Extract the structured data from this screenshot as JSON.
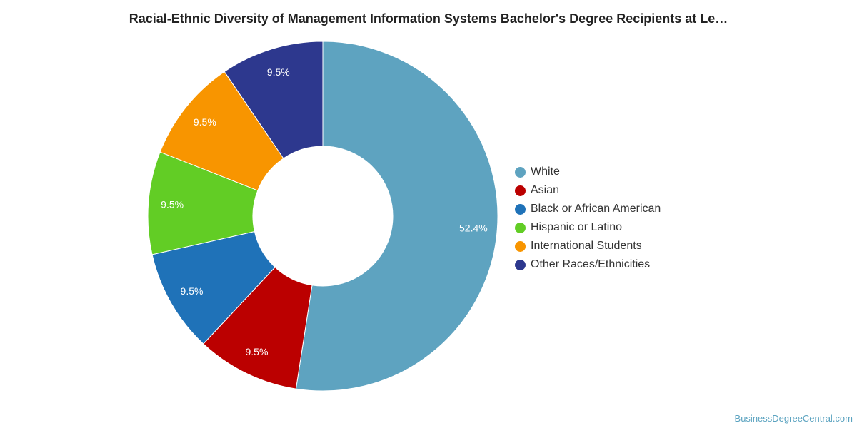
{
  "chart_data": {
    "type": "pie",
    "variant": "donut",
    "title": "Racial-Ethnic Diversity of Management Information Systems Bachelor's Degree Recipients at Le…",
    "categories": [
      "White",
      "Asian",
      "Black or African American",
      "Hispanic or Latino",
      "International Students",
      "Other Races/Ethnicities"
    ],
    "values": [
      52.4,
      9.5,
      9.5,
      9.5,
      9.5,
      9.5
    ],
    "value_labels": [
      "52.4%",
      "9.5%",
      "9.5%",
      "9.5%",
      "9.5%",
      "9.5%"
    ],
    "colors": [
      "#5ea3c0",
      "#bb0000",
      "#1f72b8",
      "#62cd25",
      "#f89500",
      "#2d388e"
    ],
    "legend_position": "right"
  },
  "credit": "BusinessDegreeCentral.com"
}
